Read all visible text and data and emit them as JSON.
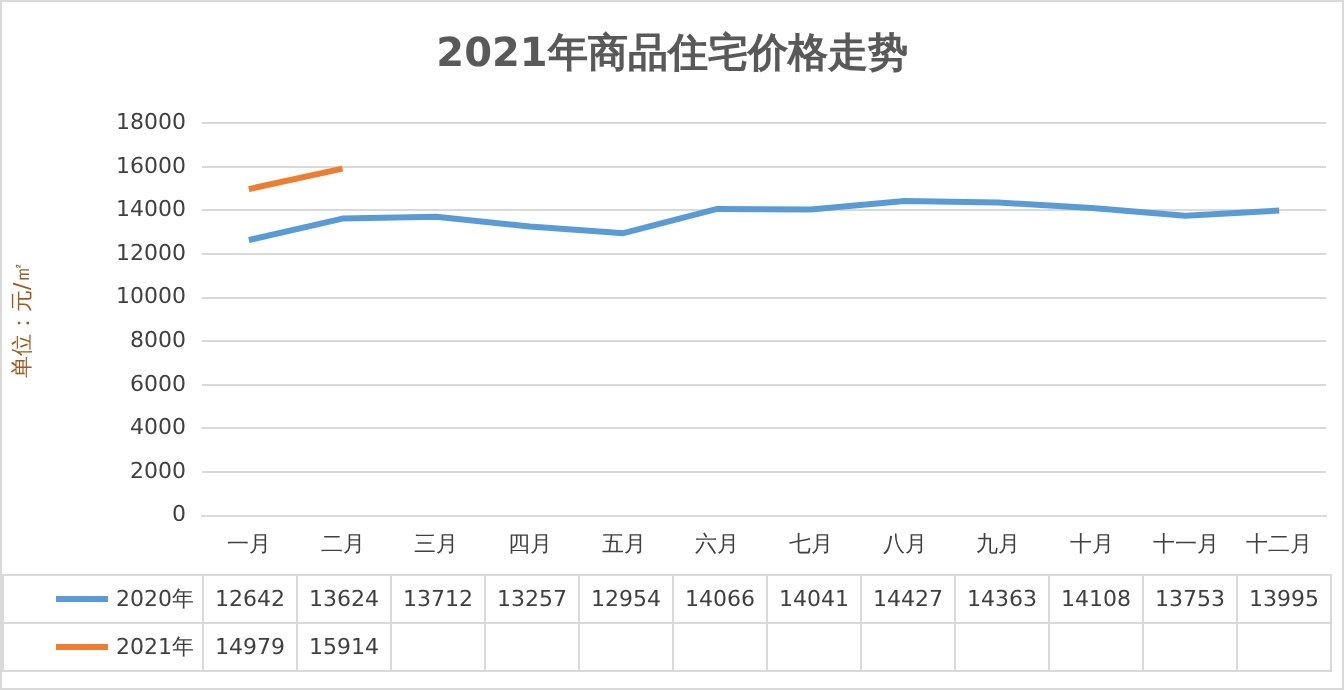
{
  "chart_data": {
    "type": "line",
    "title": "2021年商品住宅价格走势",
    "ylabel": "单位：元/㎡",
    "categories": [
      "一月",
      "二月",
      "三月",
      "四月",
      "五月",
      "六月",
      "七月",
      "八月",
      "九月",
      "十月",
      "十一月",
      "十二月"
    ],
    "series": [
      {
        "name": "2020年",
        "color": "#5b9bd5",
        "values": [
          12642,
          13624,
          13712,
          13257,
          12954,
          14066,
          14041,
          14427,
          14363,
          14108,
          13753,
          13995
        ]
      },
      {
        "name": "2021年",
        "color": "#ed7d31",
        "values": [
          14979,
          15914,
          null,
          null,
          null,
          null,
          null,
          null,
          null,
          null,
          null,
          null
        ]
      }
    ],
    "ylim": [
      0,
      18000
    ],
    "yticks": [
      0,
      2000,
      4000,
      6000,
      8000,
      10000,
      12000,
      14000,
      16000,
      18000
    ],
    "grid": "y",
    "legend": "bottom",
    "data_labels": true,
    "marker": "none"
  }
}
